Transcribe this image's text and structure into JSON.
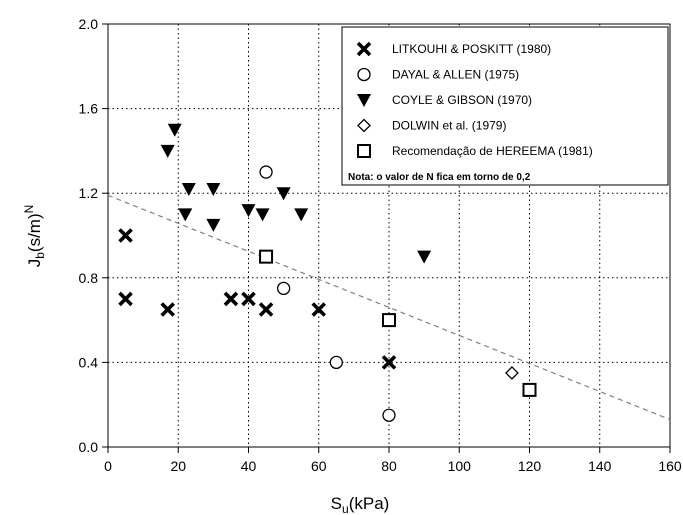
{
  "chart_data": {
    "type": "scatter",
    "xlabel": "S",
    "xlabel_sub": "u",
    "xlabel_unit": "(kPa)",
    "ylabel": "J",
    "ylabel_sub": "b",
    "ylabel_unit": "(s/m)",
    "ylabel_sup": "N",
    "xlim": [
      0,
      160
    ],
    "ylim": [
      0,
      2.0
    ],
    "x_ticks": [
      0,
      20,
      40,
      60,
      80,
      100,
      120,
      140,
      160
    ],
    "x_tick_labels": [
      "0",
      "20",
      "40",
      "60",
      "80",
      "100",
      "120",
      "140",
      "160"
    ],
    "y_ticks": [
      0,
      0.4,
      0.8,
      1.2,
      1.6,
      2.0
    ],
    "y_tick_labels": [
      "0.0",
      "0.4",
      "0.8",
      "1.2",
      "1.6",
      "2.0"
    ],
    "grid": true,
    "legend_position": "top-right",
    "series": [
      {
        "name": "LITKOUHI & POSKITT (1980)",
        "marker": "x",
        "points": [
          [
            5,
            1.0
          ],
          [
            5,
            0.7
          ],
          [
            17,
            0.65
          ],
          [
            35,
            0.7
          ],
          [
            40,
            0.7
          ],
          [
            45,
            0.65
          ],
          [
            60,
            0.65
          ],
          [
            80,
            0.4
          ]
        ]
      },
      {
        "name": "DAYAL & ALLEN (1975)",
        "marker": "circle",
        "points": [
          [
            45,
            1.3
          ],
          [
            50,
            0.75
          ],
          [
            65,
            0.4
          ],
          [
            80,
            0.15
          ]
        ]
      },
      {
        "name": "COYLE & GIBSON (1970)",
        "marker": "triangle-down",
        "points": [
          [
            17,
            1.4
          ],
          [
            19,
            1.5
          ],
          [
            22,
            1.1
          ],
          [
            23,
            1.22
          ],
          [
            30,
            1.22
          ],
          [
            30,
            1.05
          ],
          [
            40,
            1.12
          ],
          [
            44,
            1.1
          ],
          [
            50,
            1.2
          ],
          [
            55,
            1.1
          ],
          [
            90,
            0.9
          ]
        ]
      },
      {
        "name": "DOLWIN et al. (1979)",
        "marker": "diamond",
        "points": [
          [
            115,
            0.35
          ]
        ]
      },
      {
        "name": "Recomendação de HEREEMA (1981)",
        "marker": "square",
        "points": [
          [
            45,
            0.9
          ],
          [
            80,
            0.6
          ],
          [
            120,
            0.27
          ]
        ]
      }
    ],
    "trend_line": {
      "from": [
        0,
        1.19
      ],
      "to": [
        160,
        0.13
      ],
      "style": "dashed"
    },
    "legend_note": "Nota: o valor de N fica em torno de 0,2",
    "colors": {
      "marker": "#000000",
      "grid": "#000000",
      "trend": "#808080"
    }
  }
}
